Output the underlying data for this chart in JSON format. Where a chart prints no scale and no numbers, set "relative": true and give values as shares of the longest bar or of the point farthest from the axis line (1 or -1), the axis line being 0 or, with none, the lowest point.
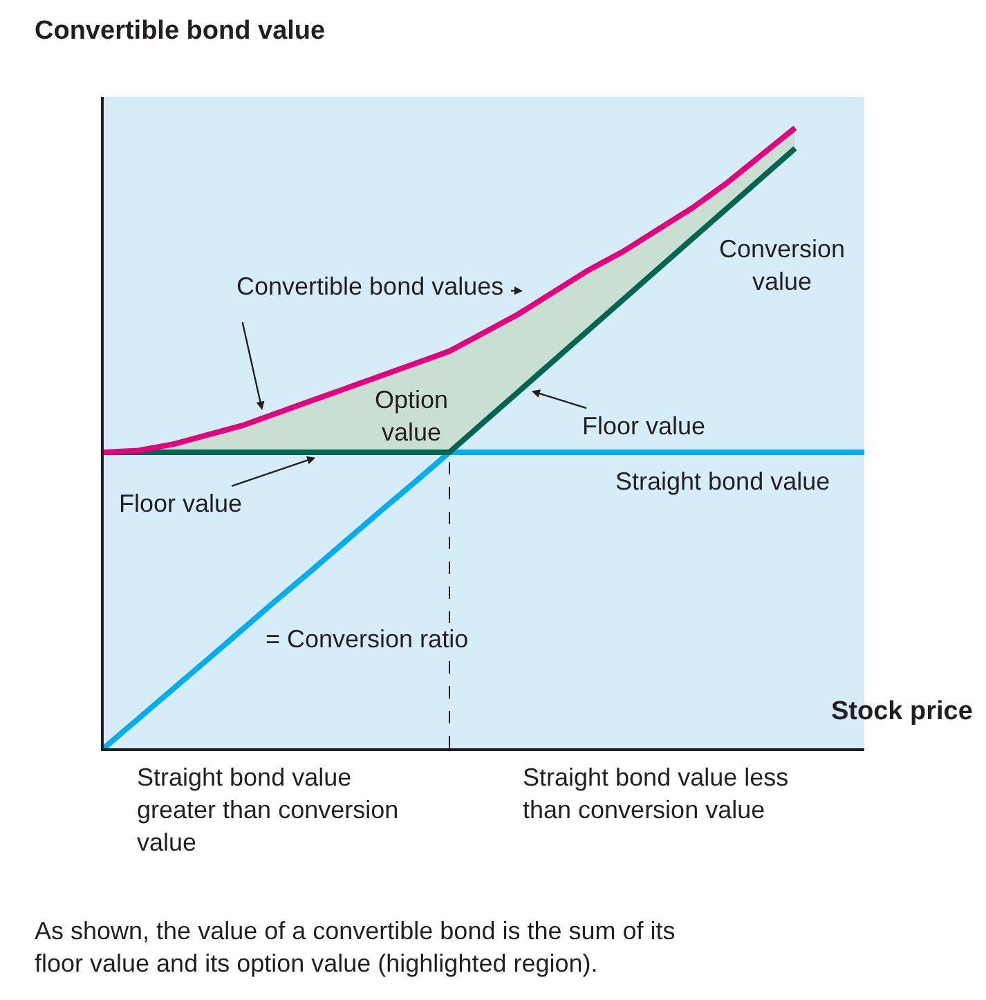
{
  "chart_data": {
    "type": "line",
    "relative": true,
    "xlabel": "Stock price",
    "ylabel": "Convertible bond value",
    "categories": [
      null,
      null,
      null,
      null,
      null,
      null,
      null,
      null,
      null,
      null,
      null,
      null,
      null,
      null,
      null,
      null,
      null,
      null,
      null,
      null,
      null,
      null,
      null
    ],
    "series": [
      {
        "name": "Convertible bond values",
        "color": "#e5007e",
        "values": [
          0.477,
          0.48,
          0.49,
          0.505,
          0.52,
          0.54,
          0.56,
          0.58,
          0.6,
          0.62,
          0.64,
          0.67,
          0.7,
          0.735,
          0.77,
          0.8,
          0.835,
          0.87,
          0.91,
          0.955,
          1.0,
          null,
          null
        ],
        "lower": [
          0.477,
          0.477,
          0.477,
          0.477,
          0.477,
          0.477,
          0.477,
          0.477,
          0.477,
          0.477,
          0.477,
          0.526,
          0.575,
          0.624,
          0.673,
          0.722,
          0.771,
          0.82,
          0.869,
          0.918,
          0.967,
          null,
          null
        ],
        "upper": [
          0.477,
          0.48,
          0.49,
          0.505,
          0.52,
          0.54,
          0.56,
          0.58,
          0.6,
          0.62,
          0.64,
          0.67,
          0.7,
          0.735,
          0.77,
          0.8,
          0.835,
          0.87,
          0.91,
          0.955,
          1.0,
          null,
          null
        ]
      },
      {
        "name": "Floor value",
        "color": "#00664f",
        "values": [
          0.477,
          0.477,
          0.477,
          0.477,
          0.477,
          0.477,
          0.477,
          0.477,
          0.477,
          0.477,
          0.477,
          0.526,
          0.575,
          0.624,
          0.673,
          0.722,
          0.771,
          0.82,
          0.869,
          0.918,
          0.967,
          null,
          null
        ]
      },
      {
        "name": "Straight bond value",
        "color": "#00aeef",
        "values": [
          null,
          null,
          null,
          null,
          null,
          null,
          null,
          null,
          null,
          null,
          0.477,
          0.477,
          0.477,
          0.477,
          0.477,
          0.477,
          0.477,
          0.477,
          0.477,
          0.477,
          0.477,
          0.477,
          0.477
        ]
      },
      {
        "color": "#00aeef",
        "values": [
          0,
          0.0477,
          0.0954,
          0.143,
          0.191,
          0.239,
          0.286,
          0.334,
          0.382,
          0.429,
          0.477,
          null,
          null,
          null,
          null,
          null,
          null,
          null,
          null,
          null,
          null,
          null,
          null
        ]
      }
    ],
    "annotations": [
      "Conversion value",
      "Option value",
      "= Conversion ratio",
      "Straight bond value greater than conversion value",
      "Straight bond value less than conversion value",
      "As shown, the value of a convertible bond is the sum of its floor value and its option value (highlighted region)."
    ],
    "legend": false,
    "marker": "none",
    "line_style": "solid"
  }
}
